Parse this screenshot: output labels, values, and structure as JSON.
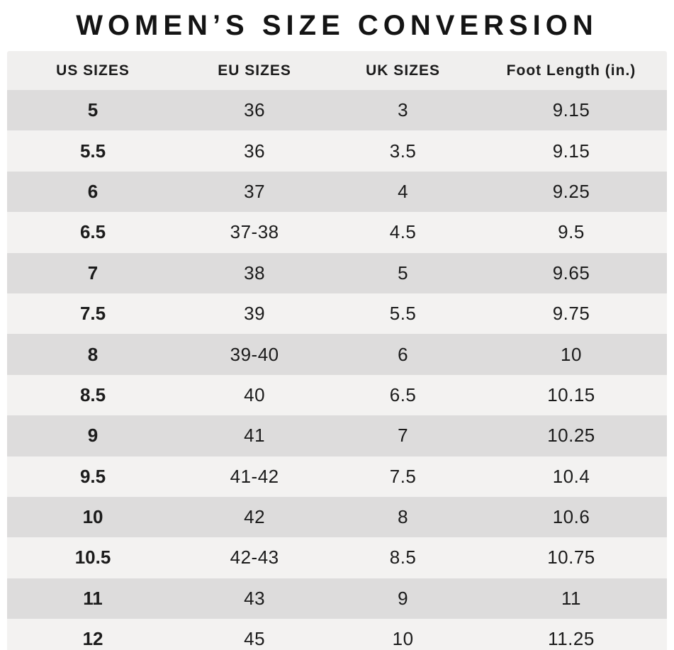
{
  "title": "WOMEN’S SIZE CONVERSION",
  "table": {
    "headers": [
      "US SIZES",
      "EU SIZES",
      "UK SIZES",
      "Foot Length (in.)"
    ],
    "rows": [
      [
        "5",
        "36",
        "3",
        "9.15"
      ],
      [
        "5.5",
        "36",
        "3.5",
        "9.15"
      ],
      [
        "6",
        "37",
        "4",
        "9.25"
      ],
      [
        "6.5",
        "37-38",
        "4.5",
        "9.5"
      ],
      [
        "7",
        "38",
        "5",
        "9.65"
      ],
      [
        "7.5",
        "39",
        "5.5",
        "9.75"
      ],
      [
        "8",
        "39-40",
        "6",
        "10"
      ],
      [
        "8.5",
        "40",
        "6.5",
        "10.15"
      ],
      [
        "9",
        "41",
        "7",
        "10.25"
      ],
      [
        "9.5",
        "41-42",
        "7.5",
        "10.4"
      ],
      [
        "10",
        "42",
        "8",
        "10.6"
      ],
      [
        "10.5",
        "42-43",
        "8.5",
        "10.75"
      ],
      [
        "11",
        "43",
        "9",
        "11"
      ],
      [
        "12",
        "45",
        "10",
        "11.25"
      ]
    ]
  },
  "colors": {
    "background": "#ffffff",
    "header_bg": "#f0efee",
    "row_dark": "#dddcdc",
    "row_light": "#f3f2f1",
    "text": "#1b1b1b"
  },
  "chart_data": {
    "type": "table",
    "title": "WOMEN’S SIZE CONVERSION",
    "columns": [
      "US SIZES",
      "EU SIZES",
      "UK SIZES",
      "Foot Length (in.)"
    ],
    "rows": [
      [
        "5",
        "36",
        "3",
        "9.15"
      ],
      [
        "5.5",
        "36",
        "3.5",
        "9.15"
      ],
      [
        "6",
        "37",
        "4",
        "9.25"
      ],
      [
        "6.5",
        "37-38",
        "4.5",
        "9.5"
      ],
      [
        "7",
        "38",
        "5",
        "9.65"
      ],
      [
        "7.5",
        "39",
        "5.5",
        "9.75"
      ],
      [
        "8",
        "39-40",
        "6",
        "10"
      ],
      [
        "8.5",
        "40",
        "6.5",
        "10.15"
      ],
      [
        "9",
        "41",
        "7",
        "10.25"
      ],
      [
        "9.5",
        "41-42",
        "7.5",
        "10.4"
      ],
      [
        "10",
        "42",
        "8",
        "10.6"
      ],
      [
        "10.5",
        "42-43",
        "8.5",
        "10.75"
      ],
      [
        "11",
        "43",
        "9",
        "11"
      ],
      [
        "12",
        "45",
        "10",
        "11.25"
      ]
    ]
  }
}
